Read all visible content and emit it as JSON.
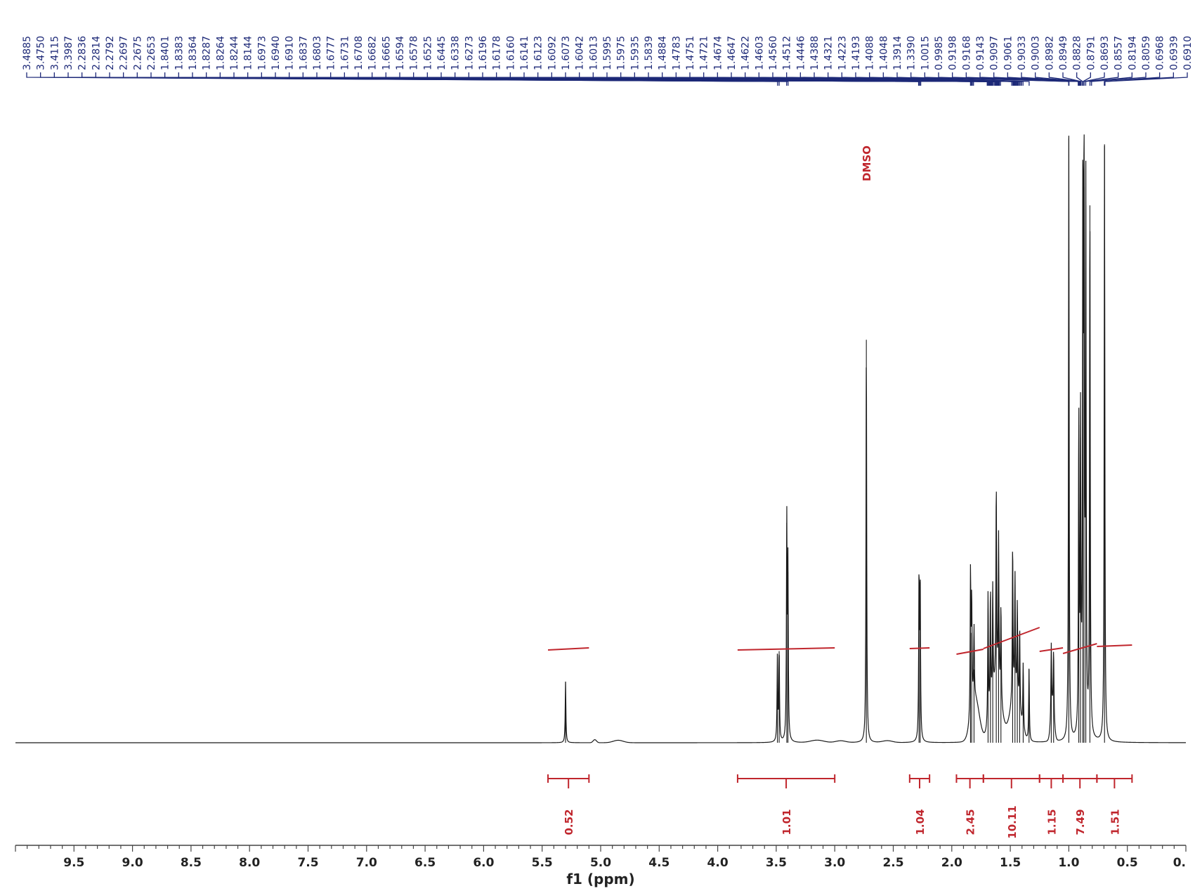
{
  "chart_data": {
    "type": "line",
    "title": "",
    "xlabel": "f1 (ppm)",
    "ylabel": "",
    "x_reversed": true,
    "xlim": [
      10.0,
      0.0
    ],
    "x_ticks": [
      9.5,
      9.0,
      8.5,
      8.0,
      7.5,
      7.0,
      6.5,
      6.0,
      5.5,
      5.0,
      4.5,
      4.0,
      3.5,
      3.0,
      2.5,
      2.0,
      1.5,
      1.0,
      0.5,
      0.0
    ],
    "x_tick_labels": [
      "9.5",
      "9.0",
      "8.5",
      "8.0",
      "7.5",
      "7.0",
      "6.5",
      "6.0",
      "5.5",
      "5.0",
      "4.5",
      "4.0",
      "3.5",
      "3.0",
      "2.5",
      "2.0",
      "1.5",
      "1.0",
      "0.5",
      "0."
    ],
    "peak_labels": [
      "3.4885",
      "3.4750",
      "3.4115",
      "3.3987",
      "2.2836",
      "2.2814",
      "2.2792",
      "2.2697",
      "2.2675",
      "2.2653",
      "1.8401",
      "1.8383",
      "1.8364",
      "1.8287",
      "1.8264",
      "1.8244",
      "1.8144",
      "1.6973",
      "1.6940",
      "1.6910",
      "1.6837",
      "1.6803",
      "1.6777",
      "1.6731",
      "1.6708",
      "1.6682",
      "1.6665",
      "1.6594",
      "1.6578",
      "1.6525",
      "1.6445",
      "1.6338",
      "1.6273",
      "1.6196",
      "1.6178",
      "1.6160",
      "1.6141",
      "1.6123",
      "1.6092",
      "1.6073",
      "1.6042",
      "1.6013",
      "1.5995",
      "1.5975",
      "1.5935",
      "1.5839",
      "1.4884",
      "1.4783",
      "1.4751",
      "1.4721",
      "1.4674",
      "1.4647",
      "1.4622",
      "1.4603",
      "1.4560",
      "1.4512",
      "1.4446",
      "1.4388",
      "1.4321",
      "1.4223",
      "1.4193",
      "1.4088",
      "1.4048",
      "1.3914",
      "1.3390",
      "1.0015",
      "0.9985",
      "0.9198",
      "0.9168",
      "0.9143",
      "0.9097",
      "0.9061",
      "0.9033",
      "0.9003",
      "0.8982",
      "0.8949",
      "0.8828",
      "0.8791",
      "0.8693",
      "0.8557",
      "0.8194",
      "0.8059",
      "0.6968",
      "0.6939",
      "0.6910"
    ],
    "peaks": [
      {
        "ppm": 5.3,
        "height": 0.1
      },
      {
        "ppm": 3.49,
        "height": 0.14
      },
      {
        "ppm": 3.475,
        "height": 0.15
      },
      {
        "ppm": 3.41,
        "height": 0.36
      },
      {
        "ppm": 3.4,
        "height": 0.28
      },
      {
        "ppm": 2.73,
        "height": 0.66
      },
      {
        "ppm": 2.28,
        "height": 0.27
      },
      {
        "ppm": 2.27,
        "height": 0.26
      },
      {
        "ppm": 1.84,
        "height": 0.24
      },
      {
        "ppm": 1.83,
        "height": 0.18
      },
      {
        "ppm": 1.81,
        "height": 0.12
      },
      {
        "ppm": 1.69,
        "height": 0.22
      },
      {
        "ppm": 1.67,
        "height": 0.2
      },
      {
        "ppm": 1.65,
        "height": 0.18
      },
      {
        "ppm": 1.62,
        "height": 0.33
      },
      {
        "ppm": 1.6,
        "height": 0.25
      },
      {
        "ppm": 1.58,
        "height": 0.16
      },
      {
        "ppm": 1.48,
        "height": 0.26
      },
      {
        "ppm": 1.46,
        "height": 0.2
      },
      {
        "ppm": 1.44,
        "height": 0.16
      },
      {
        "ppm": 1.42,
        "height": 0.14
      },
      {
        "ppm": 1.39,
        "height": 0.11
      },
      {
        "ppm": 1.34,
        "height": 0.12
      },
      {
        "ppm": 1.15,
        "height": 0.12
      },
      {
        "ppm": 1.13,
        "height": 0.11
      },
      {
        "ppm": 1.0,
        "height": 0.99
      },
      {
        "ppm": 0.915,
        "height": 0.52
      },
      {
        "ppm": 0.9,
        "height": 0.5
      },
      {
        "ppm": 0.88,
        "height": 0.89
      },
      {
        "ppm": 0.87,
        "height": 0.91
      },
      {
        "ppm": 0.855,
        "height": 0.88
      },
      {
        "ppm": 0.82,
        "height": 0.88
      },
      {
        "ppm": 0.695,
        "height": 0.98
      }
    ],
    "integrals": [
      {
        "from": 5.45,
        "to": 5.1,
        "value": "0.52"
      },
      {
        "from": 3.83,
        "to": 3.0,
        "value": "1.01"
      },
      {
        "from": 2.36,
        "to": 2.19,
        "value": "1.04"
      },
      {
        "from": 1.96,
        "to": 1.73,
        "value": "2.45"
      },
      {
        "from": 1.73,
        "to": 1.25,
        "value": "10.11"
      },
      {
        "from": 1.25,
        "to": 1.05,
        "value": "1.15"
      },
      {
        "from": 1.05,
        "to": 0.76,
        "value": "7.49"
      },
      {
        "from": 0.76,
        "to": 0.46,
        "value": "1.51"
      }
    ],
    "annotations": [
      {
        "text": "DMSO",
        "ppm": 2.73
      }
    ],
    "grid": false,
    "legend": "none",
    "colors": {
      "spectrum": "#1a1a1a",
      "peak_labels": "#1e2a78",
      "integrals": "#c0262d"
    }
  }
}
